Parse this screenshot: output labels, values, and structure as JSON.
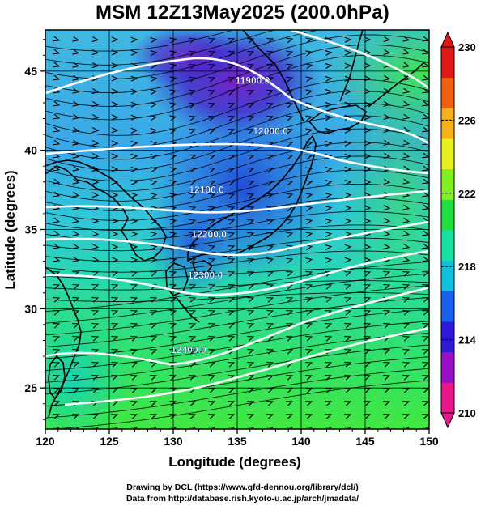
{
  "title": "MSM 12Z13May2025 (200.0hPa)",
  "credits": {
    "line1": "Drawing by DCL (https://www.gfd-dennou.org/library/dcl/)",
    "line2": "Data from http://database.rish.kyoto-u.ac.jp/arch/jmadata/"
  },
  "axes": {
    "xlabel": "Longitude (degrees)",
    "ylabel": "Latitude  (degrees)",
    "xticks": [
      "120",
      "125",
      "130",
      "135",
      "140",
      "145",
      "150"
    ],
    "yticks": [
      "25",
      "30",
      "35",
      "40",
      "45"
    ],
    "xrange": [
      120,
      150
    ],
    "yrange": [
      22.4,
      47.6
    ]
  },
  "contours": [
    {
      "label": "11900.0",
      "lon": 136.2,
      "lat": 44.2
    },
    {
      "label": "12000.0",
      "lon": 137.6,
      "lat": 41.0
    },
    {
      "label": "12100.0",
      "lon": 132.6,
      "lat": 37.3
    },
    {
      "label": "12200.0",
      "lon": 132.8,
      "lat": 34.5
    },
    {
      "label": "12300.0",
      "lon": 132.5,
      "lat": 31.9
    },
    {
      "label": "12400.0",
      "lon": 131.2,
      "lat": 27.2
    }
  ],
  "colorbar": {
    "labels": [
      "230",
      "226",
      "222",
      "218",
      "214",
      "210"
    ],
    "range": [
      210,
      230
    ],
    "colors": [
      "#e8188c",
      "#9a10c8",
      "#3018d8",
      "#1860f0",
      "#10c0e0",
      "#18e0a0",
      "#20e040",
      "#80f020",
      "#e8f020",
      "#f8b018",
      "#f06010",
      "#e01818"
    ]
  },
  "colors": {
    "contour": "#ffffff",
    "streamline": "#000000",
    "coastline": "#000000"
  }
}
